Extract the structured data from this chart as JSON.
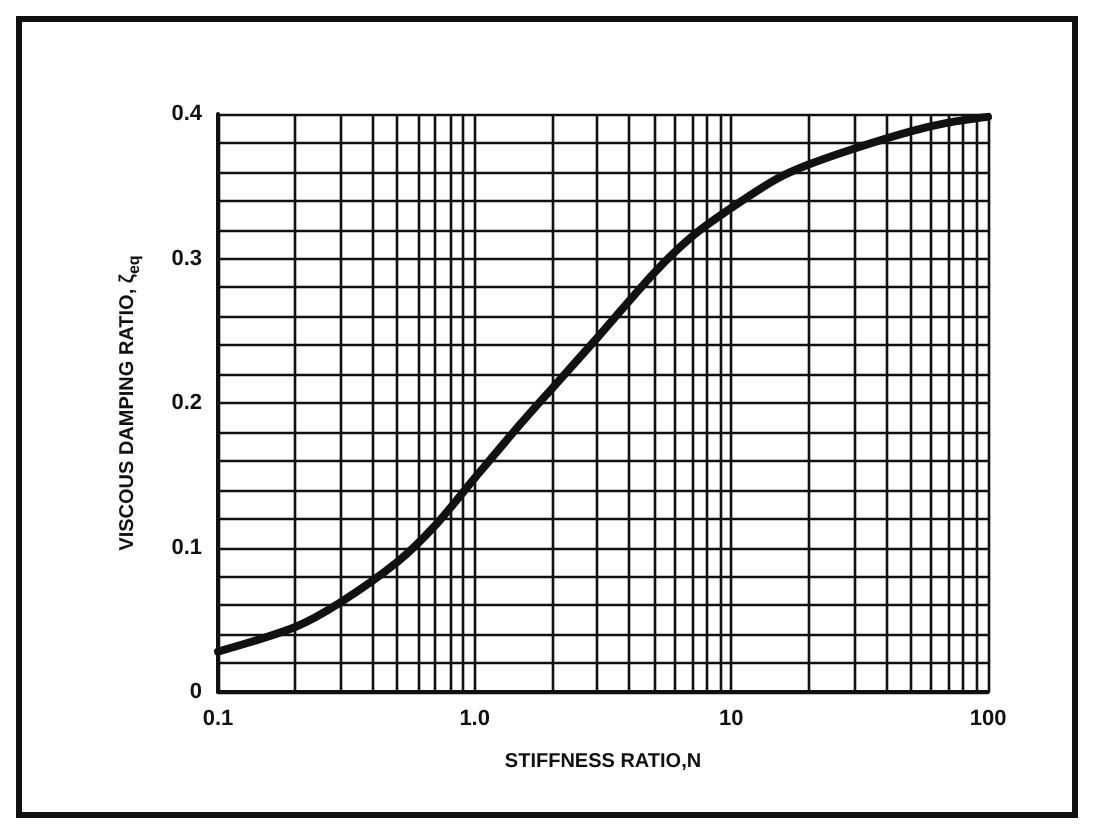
{
  "chart_data": {
    "type": "line",
    "xlabel": "STIFFNESS RATIO,N",
    "ylabel": "VISCOUS DAMPING RATIO, ζ$_{eq}$",
    "log": "x",
    "grid": true,
    "marker": "none",
    "line_style": "solid",
    "x": [
      0.1,
      0.2,
      0.3,
      0.5,
      0.7,
      1,
      1.5,
      2,
      3,
      5,
      7,
      10,
      15,
      20,
      30,
      50,
      70,
      100
    ],
    "series": [
      {
        "color": "#111111",
        "values": [
          0.028,
          0.045,
          0.062,
          0.09,
          0.115,
          0.148,
          0.185,
          0.21,
          0.245,
          0.29,
          0.315,
          0.335,
          0.355,
          0.365,
          0.376,
          0.388,
          0.394,
          0.398
        ]
      }
    ],
    "xlim": [
      0.1,
      100
    ],
    "xticks": [
      {
        "value": 0.1,
        "label": "0.1"
      },
      {
        "value": 0.2,
        "label": null
      },
      {
        "value": 0.3,
        "label": null
      },
      {
        "value": 0.4,
        "label": null
      },
      {
        "value": 0.5,
        "label": null
      },
      {
        "value": 0.6,
        "label": null
      },
      {
        "value": 0.7,
        "label": null
      },
      {
        "value": 0.8,
        "label": null
      },
      {
        "value": 0.9,
        "label": null
      },
      {
        "value": 1,
        "label": "1.0"
      },
      {
        "value": 2,
        "label": null
      },
      {
        "value": 3,
        "label": null
      },
      {
        "value": 4,
        "label": null
      },
      {
        "value": 5,
        "label": null
      },
      {
        "value": 6,
        "label": null
      },
      {
        "value": 7,
        "label": null
      },
      {
        "value": 8,
        "label": null
      },
      {
        "value": 9,
        "label": null
      },
      10,
      {
        "value": 20,
        "label": null
      },
      {
        "value": 30,
        "label": null
      },
      {
        "value": 40,
        "label": null
      },
      {
        "value": 50,
        "label": null
      },
      {
        "value": 60,
        "label": null
      },
      {
        "value": 70,
        "label": null
      },
      {
        "value": 80,
        "label": null
      },
      {
        "value": 90,
        "label": null
      },
      100
    ],
    "ylim": [
      0,
      0.4
    ],
    "yticks": [
      0,
      {
        "value": 0.02,
        "label": null
      },
      {
        "value": 0.04,
        "label": null
      },
      {
        "value": 0.06,
        "label": null
      },
      {
        "value": 0.08,
        "label": null
      },
      0.1,
      {
        "value": 0.12,
        "label": null
      },
      {
        "value": 0.14,
        "label": null
      },
      {
        "value": 0.16,
        "label": null
      },
      {
        "value": 0.18,
        "label": null
      },
      0.2,
      {
        "value": 0.22,
        "label": null
      },
      {
        "value": 0.24,
        "label": null
      },
      {
        "value": 0.26,
        "label": null
      },
      {
        "value": 0.28,
        "label": null
      },
      0.3,
      {
        "value": 0.32,
        "label": null
      },
      {
        "value": 0.34,
        "label": null
      },
      {
        "value": 0.36,
        "label": null
      },
      {
        "value": 0.38,
        "label": null
      },
      0.4
    ]
  }
}
